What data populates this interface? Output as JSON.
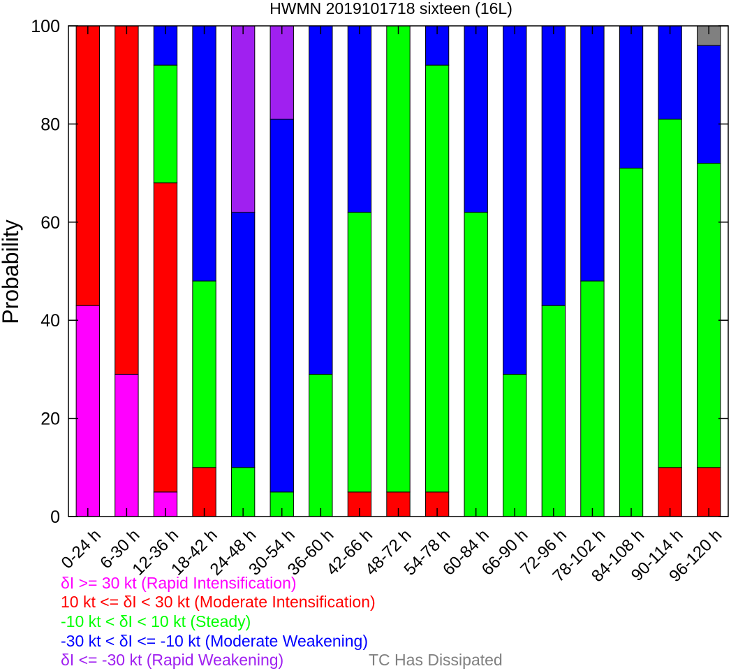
{
  "chart_data": {
    "type": "bar",
    "stacked": true,
    "title": "HWMN 2019101718 sixteen (16L)",
    "xlabel": "",
    "ylabel": "Probability",
    "ylim": [
      0,
      100
    ],
    "yticks": [
      0,
      20,
      40,
      60,
      80,
      100
    ],
    "grid": false,
    "legend_position": "bottom-left",
    "categories": [
      "0-24 h",
      "6-30 h",
      "12-36 h",
      "18-42 h",
      "24-48 h",
      "30-54 h",
      "36-60 h",
      "42-66 h",
      "48-72 h",
      "54-78 h",
      "60-84 h",
      "66-90 h",
      "72-96 h",
      "78-102 h",
      "84-108 h",
      "90-114 h",
      "96-120 h"
    ],
    "series": [
      {
        "name": "δI >= 30 kt (Rapid Intensification)",
        "color": "#ff00ff",
        "values": [
          43,
          29,
          5,
          0,
          0,
          0,
          0,
          0,
          0,
          0,
          0,
          0,
          0,
          0,
          0,
          0,
          0
        ]
      },
      {
        "name": "10 kt <= δI < 30 kt (Moderate Intensification)",
        "color": "#ff0000",
        "values": [
          57,
          71,
          63,
          10,
          0,
          0,
          0,
          5,
          5,
          5,
          0,
          0,
          0,
          0,
          0,
          10,
          10
        ]
      },
      {
        "name": "-10 kt < δI < 10 kt (Steady)",
        "color": "#00ff00",
        "values": [
          0,
          0,
          24,
          38,
          10,
          5,
          29,
          57,
          95,
          87,
          62,
          29,
          43,
          48,
          71,
          71,
          62
        ]
      },
      {
        "name": "-30 kt < δI <= -10 kt (Moderate Weakening)",
        "color": "#0000ff",
        "values": [
          0,
          0,
          8,
          52,
          52,
          76,
          71,
          38,
          0,
          8,
          38,
          71,
          57,
          52,
          29,
          19,
          24
        ]
      },
      {
        "name": "δI <= -30 kt (Rapid Weakening)",
        "color": "#a020f0",
        "values": [
          0,
          0,
          0,
          0,
          38,
          19,
          0,
          0,
          0,
          0,
          0,
          0,
          0,
          0,
          0,
          0,
          0
        ]
      },
      {
        "name": "TC Has Dissipated",
        "color": "#808080",
        "values": [
          0,
          0,
          0,
          0,
          0,
          0,
          0,
          0,
          0,
          0,
          0,
          0,
          0,
          0,
          0,
          0,
          4
        ]
      }
    ]
  }
}
